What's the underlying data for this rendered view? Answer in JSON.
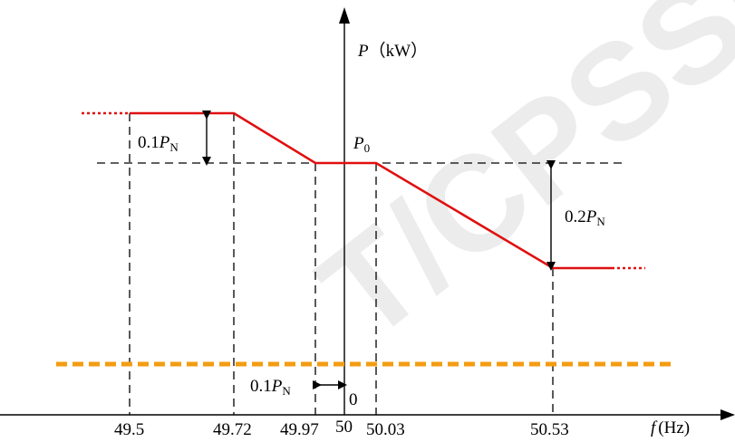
{
  "watermark": "T/CPSS团",
  "axes": {
    "y_label_var": "P",
    "y_label_unit": "（kW）",
    "x_label_var": "f",
    "x_label_unit": "(Hz)",
    "origin_label": "0"
  },
  "labels": {
    "p0": "P",
    "p0_sub": "0",
    "upper_gap_coef": "0.1",
    "upper_gap_var": "P",
    "upper_gap_sub": "N",
    "lower_gap_coef": "0.1",
    "lower_gap_var": "P",
    "lower_gap_sub": "N",
    "right_gap_coef": "0.2",
    "right_gap_var": "P",
    "right_gap_sub": "N"
  },
  "x_ticks": [
    "49.5",
    "49.72",
    "49.97",
    "50",
    "50.03",
    "50.53"
  ],
  "colors": {
    "curve": "#e01010",
    "limit_line": "#f39c12",
    "axis": "#000000"
  }
}
